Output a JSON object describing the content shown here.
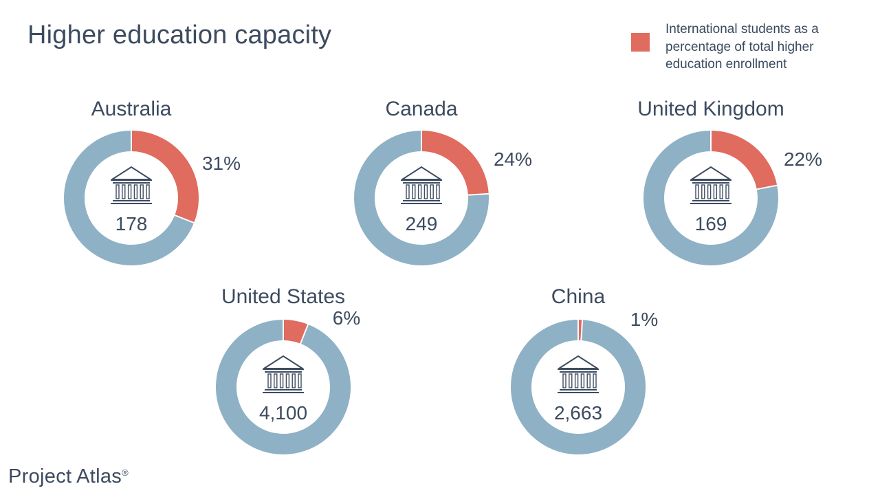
{
  "title": "Higher education capacity",
  "legend": {
    "label": "International students as a percentage of total higher education enrollment",
    "color": "#e06b5f"
  },
  "colors": {
    "share": "#e06b5f",
    "rest": "#8fb1c5",
    "icon": "#3d4b5f"
  },
  "chart_data": [
    {
      "type": "pie",
      "title": "Australia",
      "percent_label": "31%",
      "values": [
        31,
        69
      ],
      "center_value": "178",
      "icon": "institution-building-icon"
    },
    {
      "type": "pie",
      "title": "Canada",
      "percent_label": "24%",
      "values": [
        24,
        76
      ],
      "center_value": "249",
      "icon": "institution-building-icon"
    },
    {
      "type": "pie",
      "title": "United Kingdom",
      "percent_label": "22%",
      "values": [
        22,
        78
      ],
      "center_value": "169",
      "icon": "institution-building-icon"
    },
    {
      "type": "pie",
      "title": "United States",
      "percent_label": "6%",
      "values": [
        6,
        94
      ],
      "center_value": "4,100",
      "icon": "institution-building-icon"
    },
    {
      "type": "pie",
      "title": "China",
      "percent_label": "1%",
      "values": [
        1,
        99
      ],
      "center_value": "2,663",
      "icon": "institution-building-icon"
    }
  ],
  "footer": {
    "brand": "Project Atlas",
    "mark": "®"
  }
}
